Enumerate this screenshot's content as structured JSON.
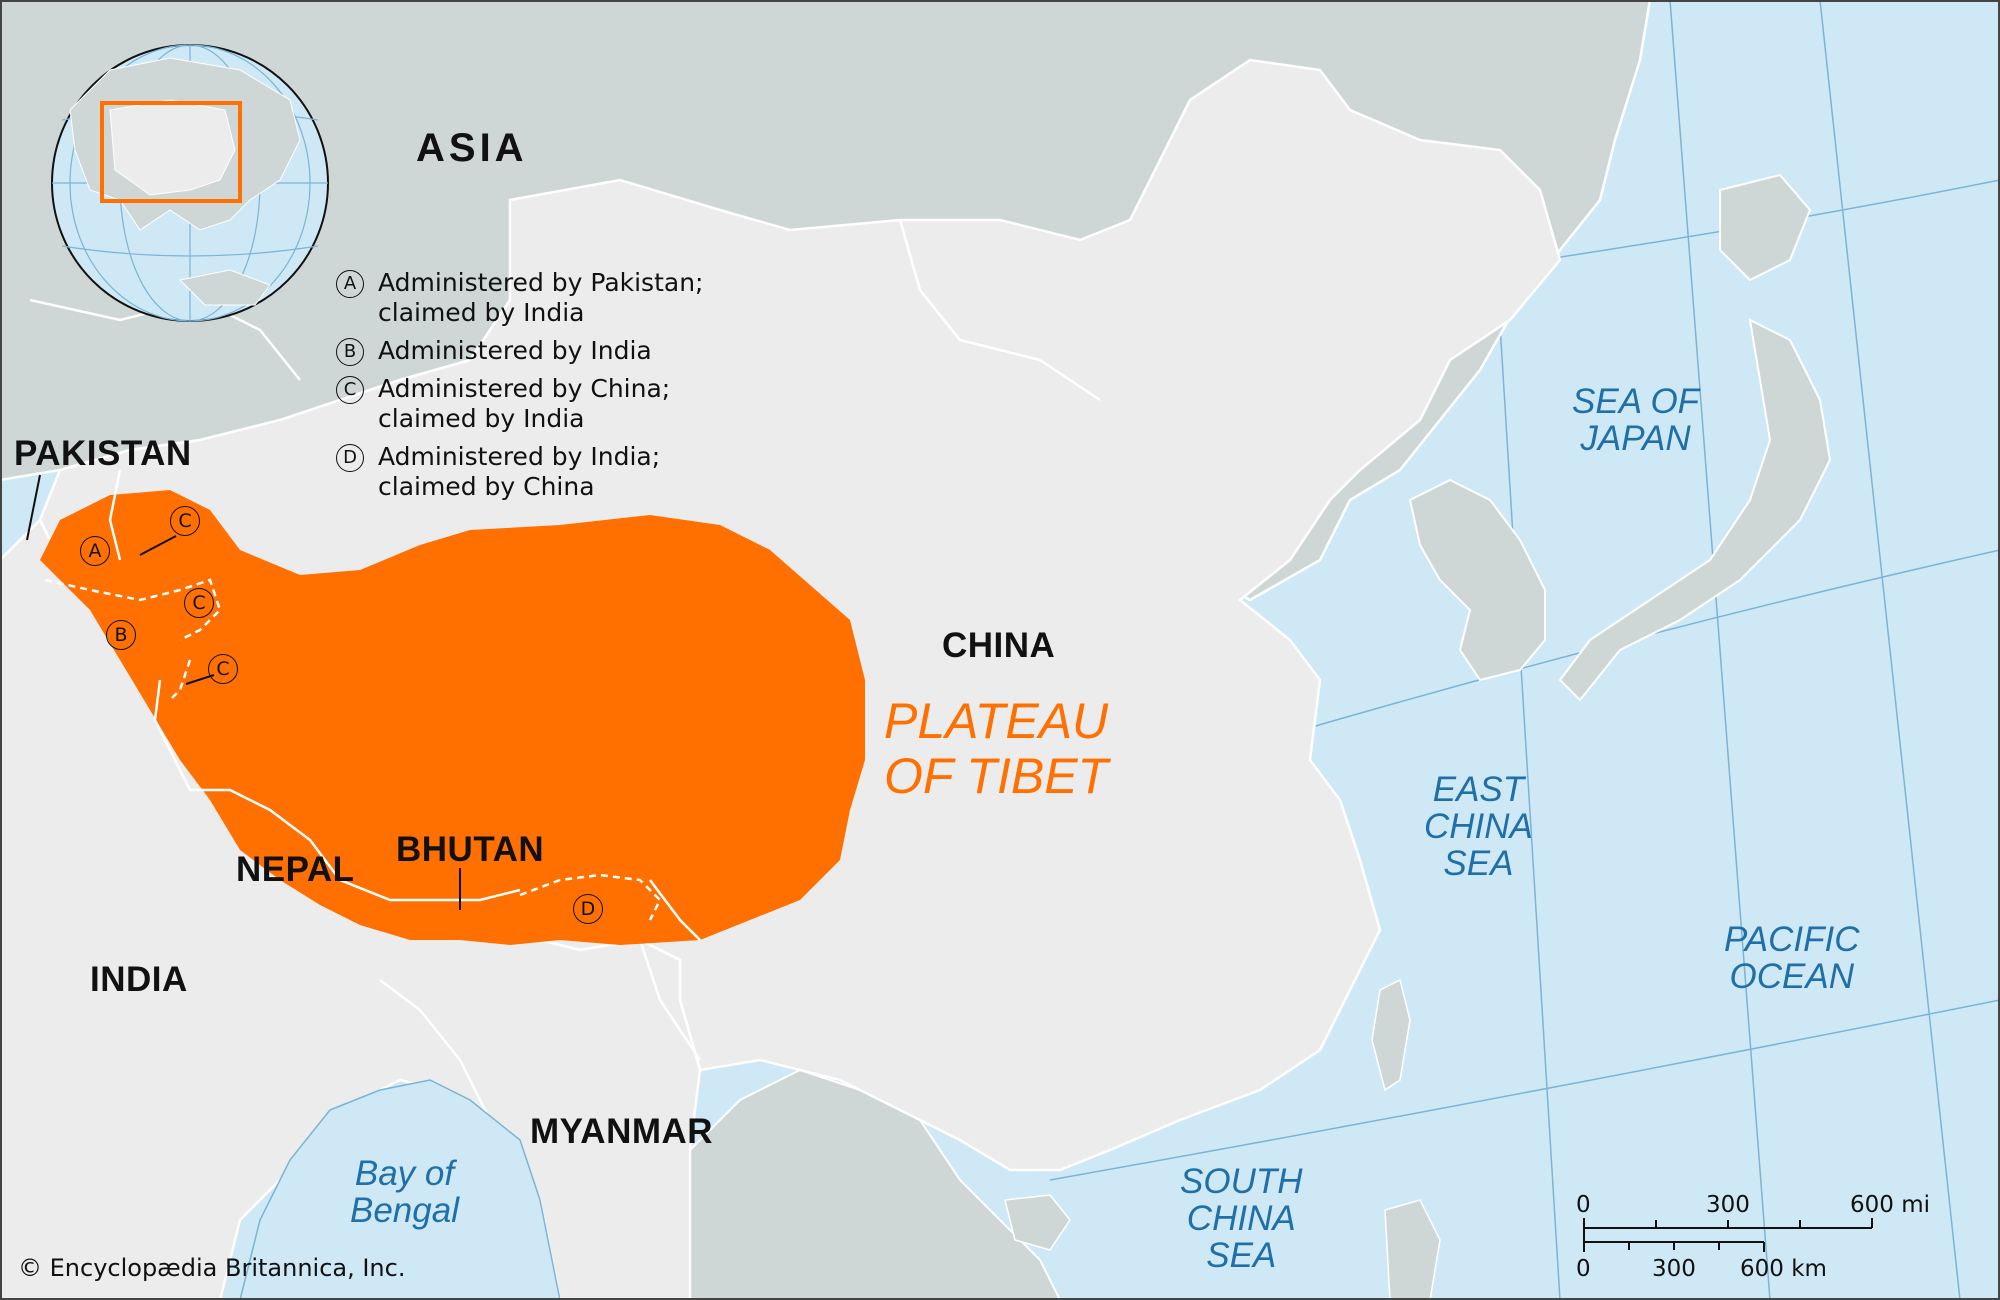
{
  "labels": {
    "continent": "ASIA",
    "countries": {
      "pakistan": "PAKISTAN",
      "china": "CHINA",
      "nepal": "NEPAL",
      "bhutan": "BHUTAN",
      "india": "INDIA",
      "myanmar": "MYANMAR"
    },
    "feature_line1": "PLATEAU",
    "feature_line2": "OF TIBET",
    "seas": {
      "sea_of_japan_1": "SEA OF",
      "sea_of_japan_2": "JAPAN",
      "east_china_1": "EAST",
      "east_china_2": "CHINA",
      "east_china_3": "SEA",
      "pacific_1": "PACIFIC",
      "pacific_2": "OCEAN",
      "south_china_1": "SOUTH",
      "south_china_2": "CHINA",
      "south_china_3": "SEA",
      "bay_1": "Bay of",
      "bay_2": "Bengal"
    }
  },
  "legend": [
    {
      "marker": "A",
      "text": "Administered by Pakistan;\nclaimed by India"
    },
    {
      "marker": "B",
      "text": "Administered by India"
    },
    {
      "marker": "C",
      "text": "Administered by China;\nclaimed by India"
    },
    {
      "marker": "D",
      "text": "Administered by India;\nclaimed by China"
    }
  ],
  "map_markers": {
    "a": "A",
    "b": "B",
    "c1": "C",
    "c2": "C",
    "c3": "C",
    "d": "D"
  },
  "scale": {
    "mi_0": "0",
    "mi_300": "300",
    "mi_600": "600 mi",
    "km_0": "0",
    "km_300": "300",
    "km_600": "600 km"
  },
  "credit": "© Encyclopædia Britannica, Inc.",
  "colors": {
    "water": "#cfe8f5",
    "land_neighbor": "#cfd6d6",
    "land_focus": "#ececec",
    "plateau": "#ff7000",
    "sea_label": "#1f6fa8",
    "locator_frame": "#ff7000"
  }
}
